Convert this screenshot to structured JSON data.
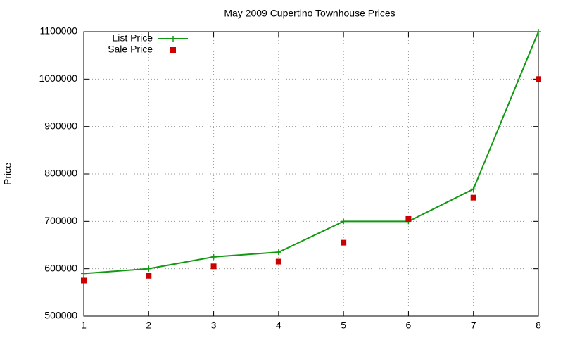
{
  "chart_data": {
    "type": "line",
    "title": "May 2009 Cupertino Townhouse Prices",
    "y_label": "Price",
    "x": [
      1,
      2,
      3,
      4,
      5,
      6,
      7,
      8
    ],
    "series": [
      {
        "name": "List Price",
        "color": "#119911",
        "style": "line",
        "values": [
          590000,
          600000,
          625000,
          635000,
          700000,
          700000,
          768000,
          1100000
        ]
      },
      {
        "name": "Sale Price",
        "color": "#cc0000",
        "style": "points",
        "values": [
          575000,
          585000,
          605000,
          615000,
          655000,
          705000,
          750000,
          1000000
        ]
      }
    ],
    "xlim": [
      1,
      8
    ],
    "xticks": [
      1,
      2,
      3,
      4,
      5,
      6,
      7,
      8
    ],
    "ylim": [
      500000,
      1100000
    ],
    "yticks": [
      500000,
      600000,
      700000,
      800000,
      900000,
      1000000,
      1100000
    ],
    "grid": true,
    "legend": "top-left"
  }
}
